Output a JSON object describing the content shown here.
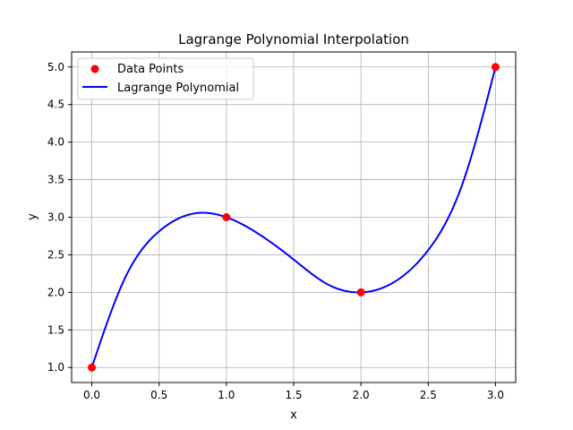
{
  "chart_data": {
    "type": "line",
    "title": "Lagrange Polynomial Interpolation",
    "xlabel": "x",
    "ylabel": "y",
    "xlim": [
      -0.15,
      3.15
    ],
    "ylim": [
      0.8,
      5.2
    ],
    "x_ticks": [
      0.0,
      0.5,
      1.0,
      1.5,
      2.0,
      2.5,
      3.0
    ],
    "x_tick_labels": [
      "0.0",
      "0.5",
      "1.0",
      "1.5",
      "2.0",
      "2.5",
      "3.0"
    ],
    "y_ticks": [
      1.0,
      1.5,
      2.0,
      2.5,
      3.0,
      3.5,
      4.0,
      4.5,
      5.0
    ],
    "y_tick_labels": [
      "1.0",
      "1.5",
      "2.0",
      "2.5",
      "3.0",
      "3.5",
      "4.0",
      "4.5",
      "5.0"
    ],
    "grid": true,
    "legend_position": "top-left",
    "series": [
      {
        "name": "Data Points",
        "kind": "scatter",
        "color": "#ff0000",
        "points": [
          {
            "x": 0,
            "y": 1
          },
          {
            "x": 1,
            "y": 3
          },
          {
            "x": 2,
            "y": 2
          },
          {
            "x": 3,
            "y": 5
          }
        ]
      },
      {
        "name": "Lagrange Polynomial",
        "kind": "line",
        "color": "#0000ff",
        "points": [
          {
            "x": 0.0,
            "y": 1.0
          },
          {
            "x": 0.25,
            "y": 2.2031
          },
          {
            "x": 0.5,
            "y": 2.8125
          },
          {
            "x": 0.75,
            "y": 3.0469
          },
          {
            "x": 1.0,
            "y": 3.0
          },
          {
            "x": 1.25,
            "y": 2.7656
          },
          {
            "x": 1.5,
            "y": 2.4375
          },
          {
            "x": 1.75,
            "y": 2.1094
          },
          {
            "x": 2.0,
            "y": 2.0
          },
          {
            "x": 2.25,
            "y": 2.1406
          },
          {
            "x": 2.5,
            "y": 2.5625
          },
          {
            "x": 2.75,
            "y": 3.4219
          },
          {
            "x": 3.0,
            "y": 5.0
          }
        ]
      }
    ]
  }
}
